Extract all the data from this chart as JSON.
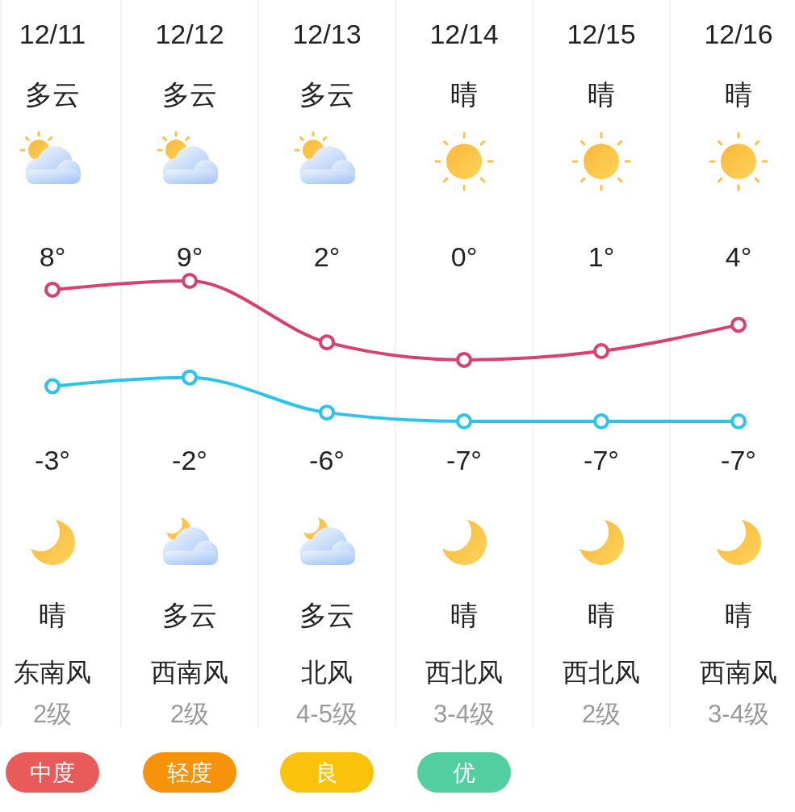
{
  "chart_data": {
    "type": "line",
    "categories": [
      "12/11",
      "12/12",
      "12/13",
      "12/14",
      "12/15",
      "12/16"
    ],
    "series": [
      {
        "color": "#d8406e",
        "values": [
          8,
          9,
          2,
          0,
          1,
          4
        ],
        "value_labels": [
          "8°",
          "9°",
          "2°",
          "0°",
          "1°",
          "4°"
        ]
      },
      {
        "color": "#2ec4ea",
        "values": [
          -3,
          -2,
          -6,
          -7,
          -7,
          -7
        ],
        "value_labels": [
          "-3°",
          "-2°",
          "-6°",
          "-7°",
          "-7°",
          "-7°"
        ]
      }
    ],
    "marker": "circle",
    "line_style": "solid",
    "grid": "x",
    "annotations": [
      "多云",
      "多云",
      "多云",
      "晴",
      "晴",
      "晴",
      "晴",
      "多云",
      "多云",
      "晴",
      "晴",
      "晴",
      "东南风",
      "西南风",
      "北风",
      "西北风",
      "西北风",
      "西南风",
      "2级",
      "2级",
      "4-5级",
      "3-4级",
      "2级",
      "3-4级",
      "中度",
      "轻度",
      "良",
      "优"
    ]
  }
}
